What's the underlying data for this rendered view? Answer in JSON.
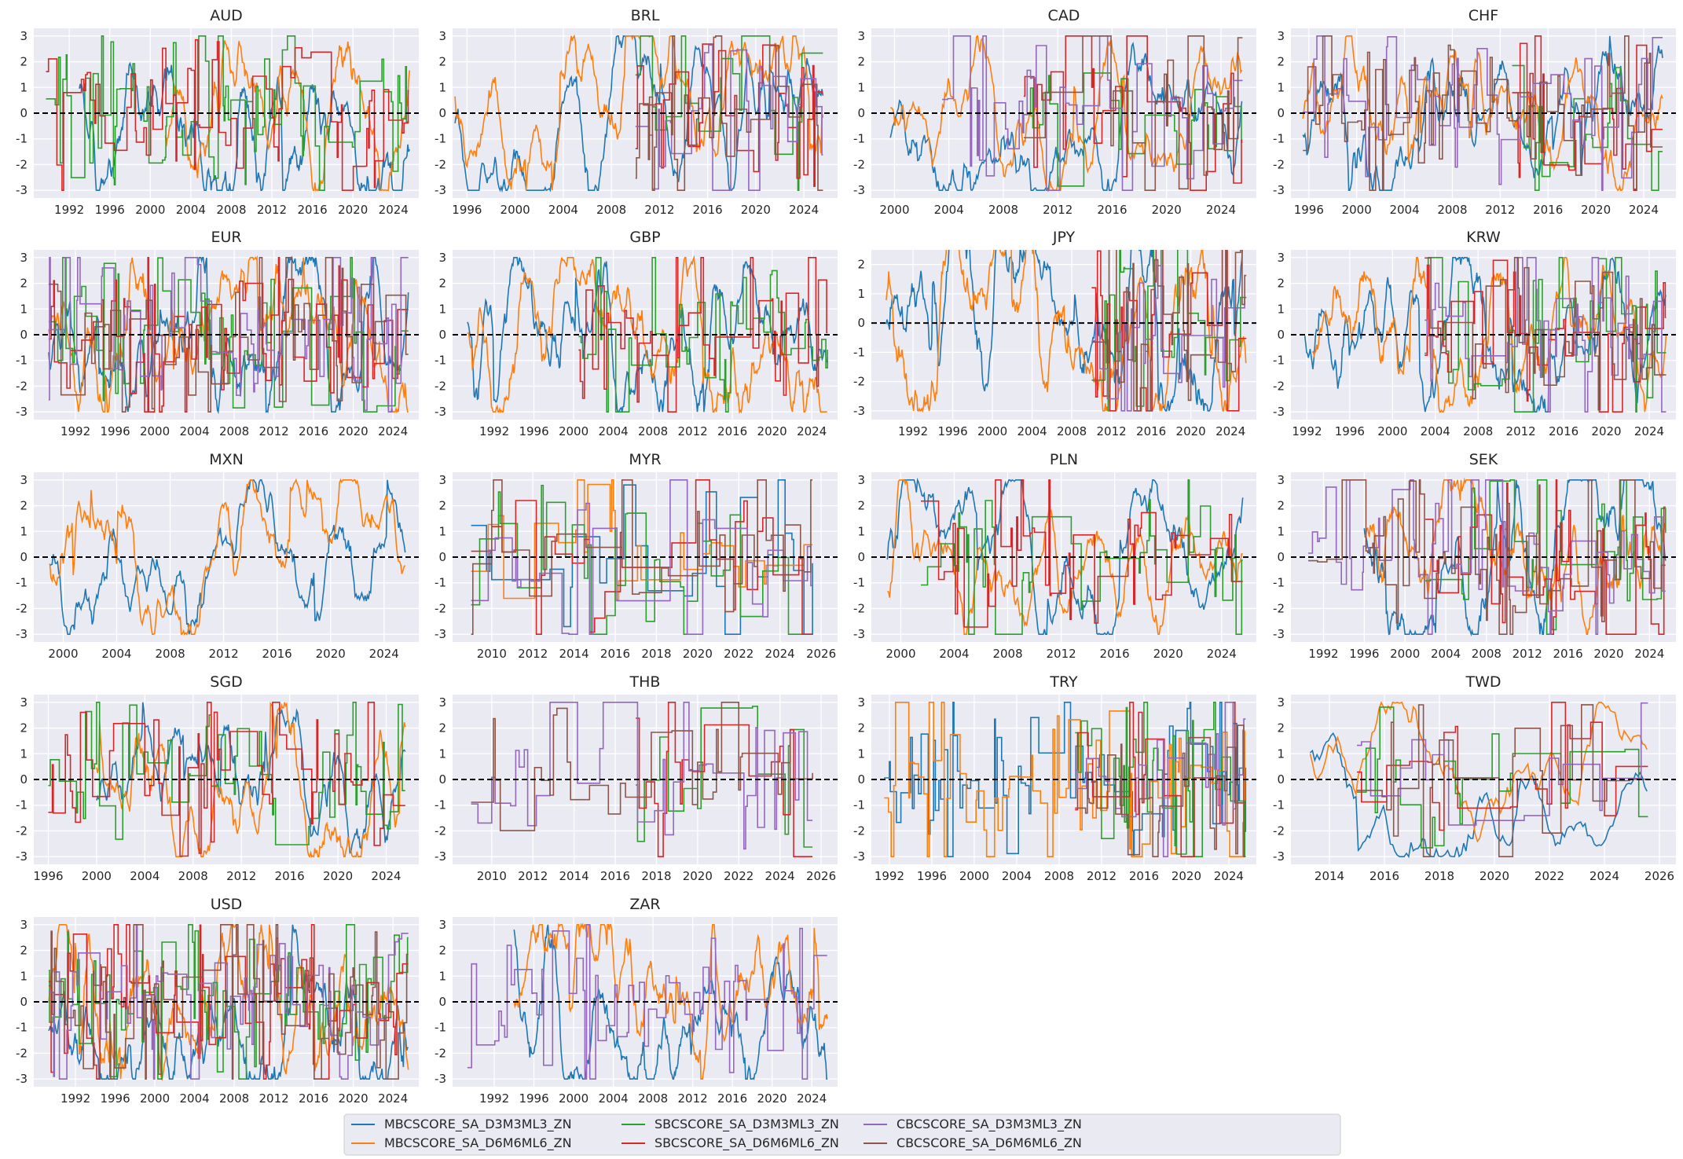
{
  "chart_data": {
    "type": "line",
    "series_names": [
      "MBCSCORE_SA_D3M3ML3_ZN",
      "MBCSCORE_SA_D6M6ML6_ZN",
      "SBCSCORE_SA_D3M3ML3_ZN",
      "SBCSCORE_SA_D6M6ML6_ZN",
      "CBCSCORE_SA_D3M3ML3_ZN",
      "CBCSCORE_SA_D6M6ML6_ZN"
    ],
    "colors": [
      "#1f77b4",
      "#ff7f0e",
      "#2ca02c",
      "#d62728",
      "#9467bd",
      "#8c564b"
    ],
    "legend": {
      "placement": "bottom-center",
      "columns": 4
    },
    "reference_line": {
      "y": 0,
      "style": "dashed",
      "color": "#000000"
    },
    "grid": true,
    "panels": [
      {
        "title": "AUD",
        "xlim": [
          1988.5,
          2026.5
        ],
        "ylim": [
          -3.3,
          3.3
        ],
        "xticks": [
          "1992",
          "1996",
          "2000",
          "2004",
          "2008",
          "2012",
          "2016",
          "2020",
          "2024"
        ],
        "yticks": [
          "-3",
          "-2",
          "-1",
          "0",
          "1",
          "2",
          "3"
        ],
        "starts": [
          1993.0,
          2001.5,
          1989.7,
          1989.7,
          null,
          null
        ]
      },
      {
        "title": "BRL",
        "xlim": [
          1994.8,
          2026.8
        ],
        "ylim": [
          -3.3,
          3.3
        ],
        "xticks": [
          "1996",
          "2000",
          "2004",
          "2008",
          "2012",
          "2016",
          "2020",
          "2024"
        ],
        "yticks": [
          "-3",
          "-2",
          "-1",
          "0",
          "1",
          "2",
          "3"
        ],
        "starts": [
          1995.0,
          1995.0,
          2010.0,
          2010.0,
          2010.0,
          2010.0
        ]
      },
      {
        "title": "CAD",
        "xlim": [
          1998.3,
          2026.6
        ],
        "ylim": [
          -3.3,
          3.3
        ],
        "xticks": [
          "2000",
          "2004",
          "2008",
          "2012",
          "2016",
          "2020",
          "2024"
        ],
        "yticks": [
          "-3",
          "-2",
          "-1",
          "0",
          "1",
          "2",
          "3"
        ],
        "starts": [
          1999.7,
          1999.7,
          2009.5,
          2009.5,
          2003.5,
          2009.5
        ]
      },
      {
        "title": "CHF",
        "xlim": [
          1994.5,
          2026.7
        ],
        "ylim": [
          -3.3,
          3.3
        ],
        "xticks": [
          "1996",
          "2000",
          "2004",
          "2008",
          "2012",
          "2016",
          "2020",
          "2024"
        ],
        "yticks": [
          "-3",
          "-2",
          "-1",
          "0",
          "1",
          "2",
          "3"
        ],
        "starts": [
          1995.5,
          1995.5,
          2013.0,
          2013.0,
          1995.5,
          1995.5
        ]
      },
      {
        "title": "EUR",
        "xlim": [
          1987.8,
          2026.6
        ],
        "ylim": [
          -3.3,
          3.3
        ],
        "xticks": [
          "1992",
          "1996",
          "2000",
          "2004",
          "2008",
          "2012",
          "2016",
          "2020",
          "2024"
        ],
        "yticks": [
          "-3",
          "-2",
          "-1",
          "0",
          "1",
          "2",
          "3"
        ],
        "starts": [
          1989.3,
          1989.3,
          1989.3,
          1989.3,
          1989.3,
          1989.3
        ]
      },
      {
        "title": "GBP",
        "xlim": [
          1987.8,
          2026.6
        ],
        "ylim": [
          -3.3,
          3.3
        ],
        "xticks": [
          "1992",
          "1996",
          "2000",
          "2004",
          "2008",
          "2012",
          "2016",
          "2020",
          "2024"
        ],
        "yticks": [
          "-3",
          "-2",
          "-1",
          "0",
          "1",
          "2",
          "3"
        ],
        "starts": [
          1989.3,
          1989.3,
          2000.5,
          2000.5,
          null,
          null
        ]
      },
      {
        "title": "JPY",
        "xlim": [
          1987.8,
          2026.6
        ],
        "ylim": [
          -3.3,
          2.5
        ],
        "xticks": [
          "1992",
          "1996",
          "2000",
          "2004",
          "2008",
          "2012",
          "2016",
          "2020",
          "2024"
        ],
        "yticks": [
          "-3",
          "-2",
          "-1",
          "0",
          "1",
          "2"
        ],
        "starts": [
          1989.3,
          1989.3,
          2010.0,
          2010.0,
          2010.0,
          2010.0
        ]
      },
      {
        "title": "KRW",
        "xlim": [
          1990.5,
          2026.5
        ],
        "ylim": [
          -3.3,
          3.3
        ],
        "xticks": [
          "1992",
          "1996",
          "2000",
          "2004",
          "2008",
          "2012",
          "2016",
          "2020",
          "2024"
        ],
        "yticks": [
          "-3",
          "-2",
          "-1",
          "0",
          "1",
          "2",
          "3"
        ],
        "starts": [
          1991.8,
          1992.5,
          2003.0,
          2003.0,
          2003.0,
          2003.0
        ]
      },
      {
        "title": "MXN",
        "xlim": [
          1997.8,
          2026.6
        ],
        "ylim": [
          -3.3,
          3.3
        ],
        "xticks": [
          "2000",
          "2004",
          "2008",
          "2012",
          "2016",
          "2020",
          "2024"
        ],
        "yticks": [
          "-3",
          "-2",
          "-1",
          "0",
          "1",
          "2",
          "3"
        ],
        "starts": [
          1999.0,
          1999.0,
          null,
          null,
          null,
          null
        ]
      },
      {
        "title": "MYR",
        "xlim": [
          2008.1,
          2026.8
        ],
        "ylim": [
          -3.3,
          3.3
        ],
        "xticks": [
          "2010",
          "2012",
          "2014",
          "2016",
          "2018",
          "2020",
          "2022",
          "2024",
          "2026"
        ],
        "yticks": [
          "-3",
          "-2",
          "-1",
          "0",
          "1",
          "2",
          "3"
        ],
        "starts": [
          2009.0,
          2009.0,
          2009.0,
          2009.0,
          2009.0,
          2009.0
        ]
      },
      {
        "title": "PLN",
        "xlim": [
          1997.8,
          2026.6
        ],
        "ylim": [
          -3.3,
          3.3
        ],
        "xticks": [
          "2000",
          "2004",
          "2008",
          "2012",
          "2016",
          "2020",
          "2024"
        ],
        "yticks": [
          "-3",
          "-2",
          "-1",
          "0",
          "1",
          "2",
          "3"
        ],
        "starts": [
          1999.0,
          1999.0,
          2001.5,
          2001.5,
          null,
          null
        ]
      },
      {
        "title": "SEK",
        "xlim": [
          1988.8,
          2026.6
        ],
        "ylim": [
          -3.3,
          3.3
        ],
        "xticks": [
          "1992",
          "1996",
          "2000",
          "2004",
          "2008",
          "2012",
          "2016",
          "2020",
          "2024"
        ],
        "yticks": [
          "-3",
          "-2",
          "-1",
          "0",
          "1",
          "2",
          "3"
        ],
        "starts": [
          1996.0,
          1996.0,
          2002.0,
          2002.0,
          1990.5,
          1990.5
        ]
      },
      {
        "title": "SGD",
        "xlim": [
          1994.8,
          2026.7
        ],
        "ylim": [
          -3.3,
          3.3
        ],
        "xticks": [
          "1996",
          "2000",
          "2004",
          "2008",
          "2012",
          "2016",
          "2020",
          "2024"
        ],
        "yticks": [
          "-3",
          "-2",
          "-1",
          "0",
          "1",
          "2",
          "3"
        ],
        "starts": [
          2000.0,
          2000.0,
          1996.0,
          1996.0,
          null,
          null
        ]
      },
      {
        "title": "THB",
        "xlim": [
          2008.1,
          2026.8
        ],
        "ylim": [
          -3.3,
          3.3
        ],
        "xticks": [
          "2010",
          "2012",
          "2014",
          "2016",
          "2018",
          "2020",
          "2022",
          "2024",
          "2026"
        ],
        "yticks": [
          "-3",
          "-2",
          "-1",
          "0",
          "1",
          "2",
          "3"
        ],
        "starts": [
          null,
          null,
          2017.0,
          2017.0,
          2009.0,
          2009.0
        ]
      },
      {
        "title": "TRY",
        "xlim": [
          1990.3,
          2026.6
        ],
        "ylim": [
          -3.3,
          3.3
        ],
        "xticks": [
          "1992",
          "1996",
          "2000",
          "2004",
          "2008",
          "2012",
          "2016",
          "2020",
          "2024"
        ],
        "yticks": [
          "-3",
          "-2",
          "-1",
          "0",
          "1",
          "2",
          "3"
        ],
        "starts": [
          1991.5,
          1991.5,
          2009.5,
          2009.5,
          2009.5,
          2009.5
        ]
      },
      {
        "title": "TWD",
        "xlim": [
          2012.6,
          2026.6
        ],
        "ylim": [
          -3.3,
          3.3
        ],
        "xticks": [
          "2014",
          "2016",
          "2018",
          "2020",
          "2022",
          "2024",
          "2026"
        ],
        "yticks": [
          "-3",
          "-2",
          "-1",
          "0",
          "1",
          "2",
          "3"
        ],
        "starts": [
          2013.3,
          2013.3,
          2015.0,
          2015.0,
          2015.0,
          2015.0
        ]
      },
      {
        "title": "USD",
        "xlim": [
          1987.8,
          2026.6
        ],
        "ylim": [
          -3.3,
          3.3
        ],
        "xticks": [
          "1992",
          "1996",
          "2000",
          "2004",
          "2008",
          "2012",
          "2016",
          "2020",
          "2024"
        ],
        "yticks": [
          "-3",
          "-2",
          "-1",
          "0",
          "1",
          "2",
          "3"
        ],
        "starts": [
          1989.3,
          1989.3,
          1989.3,
          1989.3,
          1989.3,
          1989.3
        ]
      },
      {
        "title": "ZAR",
        "xlim": [
          1987.8,
          2026.6
        ],
        "ylim": [
          -3.3,
          3.3
        ],
        "xticks": [
          "1992",
          "1996",
          "2000",
          "2004",
          "2008",
          "2012",
          "2016",
          "2020",
          "2024"
        ],
        "yticks": [
          "-3",
          "-2",
          "-1",
          "0",
          "1",
          "2",
          "3"
        ],
        "starts": [
          1994.0,
          1994.0,
          null,
          null,
          1989.3,
          null
        ]
      }
    ]
  }
}
